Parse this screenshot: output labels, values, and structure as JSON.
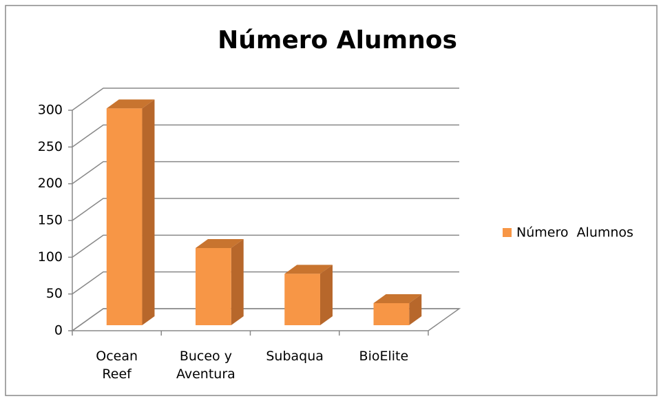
{
  "chart_data": {
    "type": "bar3d",
    "title": "Número  Alumnos",
    "categories": [
      "Ocean Reef",
      "Buceo y Aventura",
      "Subaqua",
      "BioElite"
    ],
    "series": [
      {
        "name": "Número  Alumnos",
        "color": "#f79646",
        "values": [
          295,
          105,
          70,
          30
        ]
      }
    ],
    "ylim": [
      0,
      300
    ],
    "yticks": [
      0,
      50,
      100,
      150,
      200,
      250,
      300
    ],
    "grid": true,
    "legend": "right"
  }
}
